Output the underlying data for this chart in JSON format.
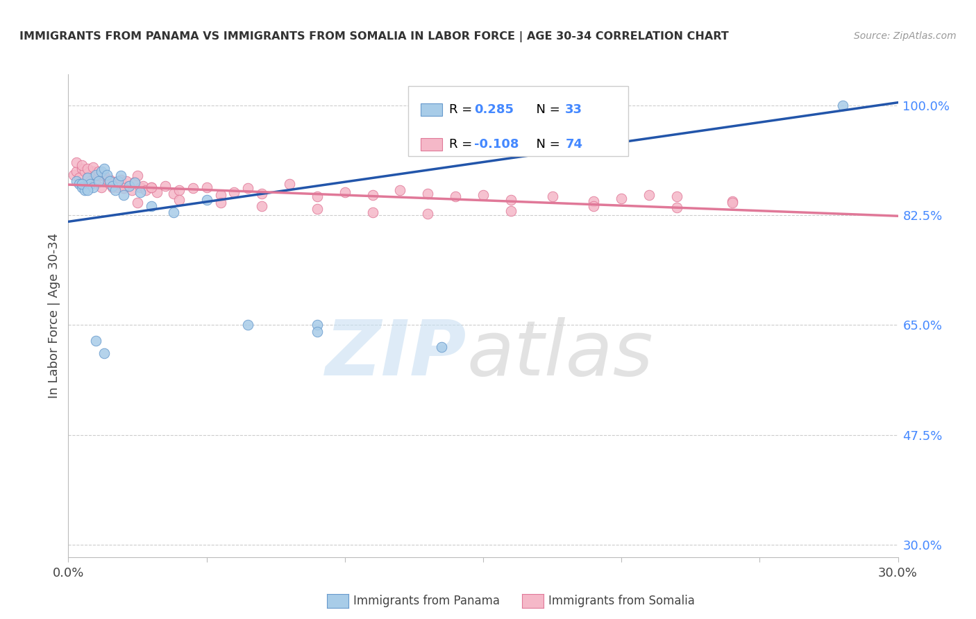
{
  "title": "IMMIGRANTS FROM PANAMA VS IMMIGRANTS FROM SOMALIA IN LABOR FORCE | AGE 30-34 CORRELATION CHART",
  "source": "Source: ZipAtlas.com",
  "ylabel": "In Labor Force | Age 30-34",
  "xlim": [
    0.0,
    0.3
  ],
  "ylim": [
    0.28,
    1.05
  ],
  "yticks_right": [
    1.0,
    0.825,
    0.65,
    0.475,
    0.3
  ],
  "ytick_labels_right": [
    "100.0%",
    "82.5%",
    "65.0%",
    "47.5%",
    "30.0%"
  ],
  "panama_color": "#a8cce8",
  "somalia_color": "#f5b8c8",
  "panama_edge": "#6699cc",
  "somalia_edge": "#e07898",
  "regression_panama_color": "#2255aa",
  "regression_somalia_color": "#e07898",
  "legend_R_panama": "0.285",
  "legend_N_panama": "33",
  "legend_R_somalia": "-0.108",
  "legend_N_somalia": "74",
  "legend_label_panama": "Immigrants from Panama",
  "legend_label_somalia": "Immigrants from Somalia",
  "panama_regression_x0": 0.0,
  "panama_regression_y0": 0.815,
  "panama_regression_x1": 0.3,
  "panama_regression_y1": 1.005,
  "somalia_regression_x0": 0.0,
  "somalia_regression_y0": 0.874,
  "somalia_regression_x1": 0.3,
  "somalia_regression_y1": 0.824,
  "panama_x": [
    0.003,
    0.004,
    0.005,
    0.006,
    0.007,
    0.008,
    0.009,
    0.01,
    0.011,
    0.012,
    0.013,
    0.014,
    0.015,
    0.016,
    0.017,
    0.018,
    0.019,
    0.02,
    0.022,
    0.024,
    0.026,
    0.03,
    0.038,
    0.05,
    0.065,
    0.09,
    0.135,
    0.28,
    0.005,
    0.007,
    0.01,
    0.013,
    0.09
  ],
  "panama_y": [
    0.88,
    0.875,
    0.87,
    0.865,
    0.885,
    0.875,
    0.87,
    0.89,
    0.88,
    0.895,
    0.9,
    0.89,
    0.88,
    0.872,
    0.865,
    0.88,
    0.888,
    0.858,
    0.872,
    0.877,
    0.862,
    0.84,
    0.83,
    0.85,
    0.65,
    0.65,
    0.615,
    1.0,
    0.875,
    0.865,
    0.625,
    0.605,
    0.64
  ],
  "somalia_x": [
    0.002,
    0.003,
    0.004,
    0.005,
    0.006,
    0.007,
    0.008,
    0.009,
    0.01,
    0.011,
    0.012,
    0.013,
    0.014,
    0.015,
    0.016,
    0.017,
    0.018,
    0.019,
    0.02,
    0.021,
    0.022,
    0.023,
    0.024,
    0.025,
    0.026,
    0.027,
    0.028,
    0.03,
    0.032,
    0.035,
    0.038,
    0.04,
    0.045,
    0.05,
    0.055,
    0.06,
    0.065,
    0.07,
    0.08,
    0.09,
    0.1,
    0.11,
    0.12,
    0.13,
    0.14,
    0.15,
    0.16,
    0.175,
    0.19,
    0.2,
    0.21,
    0.22,
    0.24,
    0.003,
    0.005,
    0.007,
    0.009,
    0.011,
    0.013,
    0.015,
    0.018,
    0.02,
    0.025,
    0.03,
    0.04,
    0.055,
    0.07,
    0.09,
    0.11,
    0.13,
    0.16,
    0.19,
    0.22,
    0.24
  ],
  "somalia_y": [
    0.89,
    0.895,
    0.885,
    0.9,
    0.895,
    0.885,
    0.88,
    0.895,
    0.875,
    0.888,
    0.87,
    0.888,
    0.882,
    0.875,
    0.87,
    0.878,
    0.875,
    0.882,
    0.868,
    0.88,
    0.872,
    0.865,
    0.878,
    0.888,
    0.87,
    0.872,
    0.865,
    0.87,
    0.862,
    0.872,
    0.86,
    0.865,
    0.868,
    0.87,
    0.858,
    0.862,
    0.868,
    0.86,
    0.875,
    0.855,
    0.862,
    0.858,
    0.865,
    0.86,
    0.855,
    0.858,
    0.85,
    0.855,
    0.848,
    0.852,
    0.858,
    0.855,
    0.848,
    0.91,
    0.905,
    0.9,
    0.902,
    0.895,
    0.888,
    0.882,
    0.87,
    0.868,
    0.845,
    0.87,
    0.85,
    0.845,
    0.84,
    0.835,
    0.83,
    0.828,
    0.832,
    0.84,
    0.838,
    0.845
  ]
}
